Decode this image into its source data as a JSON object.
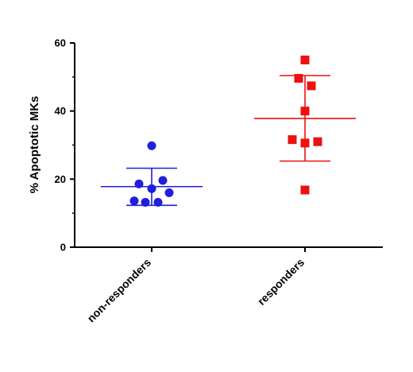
{
  "chart_data": {
    "type": "scatter",
    "title": "",
    "xlabel": "",
    "ylabel": "% Apoptotic MKs",
    "categories": [
      "non-responders",
      "responders"
    ],
    "ylim": [
      0,
      60
    ],
    "yticks": [
      0,
      20,
      40,
      60
    ],
    "grid": false,
    "series": [
      {
        "category": "non-responders",
        "color": "#1f1fdc",
        "marker": "circle",
        "values": [
          29.8,
          19.6,
          18.6,
          17.2,
          16.0,
          13.6,
          13.2,
          13.2
        ],
        "mean": 17.8,
        "sd_upper": 23.2,
        "sd_lower": 12.3
      },
      {
        "category": "responders",
        "color": "#ee1111",
        "marker": "square",
        "values": [
          55.0,
          49.6,
          47.4,
          40.0,
          31.6,
          31.0,
          30.6,
          16.8
        ],
        "mean": 37.8,
        "sd_upper": 50.4,
        "sd_lower": 25.3
      }
    ]
  }
}
